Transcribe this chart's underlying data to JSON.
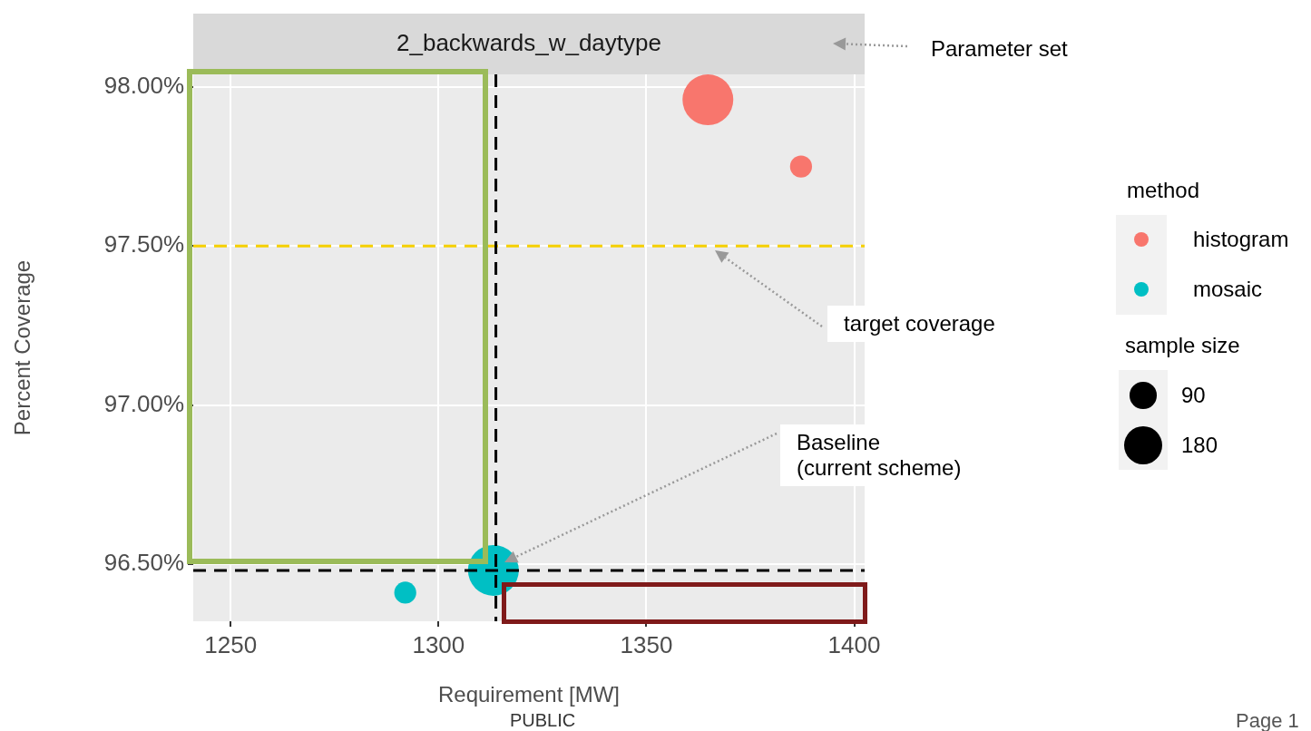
{
  "chart_data": {
    "type": "bubble",
    "title": "2_backwards_w_daytype",
    "xlabel": "Requirement [MW]",
    "ylabel": "Percent Coverage",
    "legend_title": "method",
    "series": [
      {
        "name": "histogram",
        "color": "#f8766d",
        "x": [
          1364.8,
          1387.2
        ],
        "values": [
          97.96,
          97.75
        ],
        "sizes": [
          320,
          60
        ]
      },
      {
        "name": "mosaic",
        "color": "#00bfc4",
        "x": [
          1313.2,
          1292
        ],
        "values": [
          96.48,
          96.41
        ],
        "sizes": [
          320,
          60
        ]
      }
    ],
    "size_legend": [
      90,
      180
    ],
    "xlim": [
      1241,
      1402.5
    ],
    "xticks": [
      1250,
      1300,
      1350,
      1400
    ],
    "ylim": [
      96.32,
      98.04
    ],
    "yticks": [
      {
        "value": 96.5,
        "label": "96.50%"
      },
      {
        "value": 97,
        "label": "97.00%"
      },
      {
        "value": 97.5,
        "label": "97.50%"
      },
      {
        "value": 98,
        "label": "98.00%"
      }
    ],
    "ref_lines": [
      {
        "axis": "y",
        "value": 97.5,
        "color": "#f5d000",
        "line_style": "dashed"
      },
      {
        "axis": "x",
        "value": 1313.8,
        "color": "#000000",
        "line_style": "dashed"
      },
      {
        "axis": "y",
        "value": 96.48,
        "color": "#000000",
        "line_style": "dashed"
      }
    ],
    "grid": true,
    "legend": "right",
    "annotations": [
      "Parameter set",
      "target coverage",
      "Baseline\n(current scheme)",
      "sample size",
      "PUBLIC",
      "Page 1"
    ]
  }
}
